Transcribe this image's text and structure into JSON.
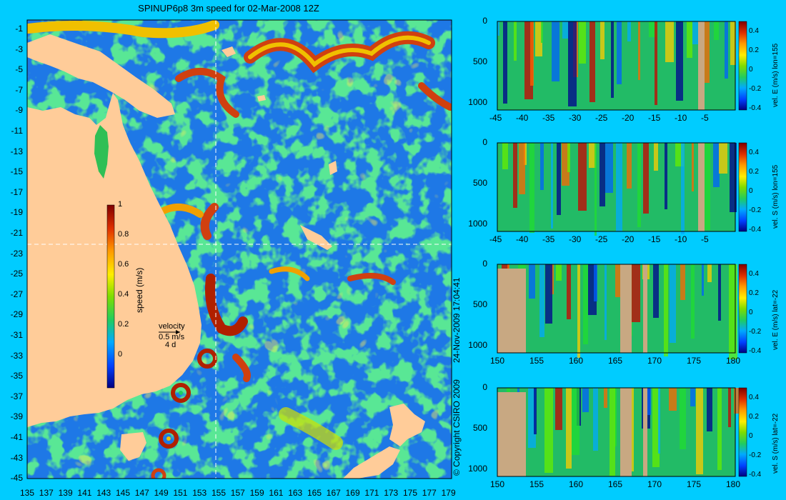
{
  "map": {
    "title": "SPINUP6p8 3m speed for 02-Mar-2008 12Z",
    "lat_labels": [
      "-1",
      "-3",
      "-5",
      "-7",
      "-9",
      "-11",
      "-13",
      "-15",
      "-17",
      "-19",
      "-21",
      "-23",
      "-25",
      "-27",
      "-29",
      "-31",
      "-33",
      "-35",
      "-37",
      "-39",
      "-41",
      "-43",
      "-45"
    ],
    "lon_labels": [
      "135",
      "137",
      "139",
      "141",
      "143",
      "145",
      "147",
      "149",
      "151",
      "153",
      "155",
      "157",
      "159",
      "161",
      "163",
      "165",
      "167",
      "169",
      "171",
      "173",
      "175",
      "177",
      "179"
    ],
    "colorbar": {
      "label": "speed (m/s)",
      "ticks": [
        "1",
        "0.8",
        "0.6",
        "0.4",
        "0.2",
        "0"
      ]
    },
    "velocity_key": {
      "title": "velocity",
      "value": "0.5 m/s",
      "duration": "4 d"
    },
    "transect_lon": 155,
    "transect_lat": -22,
    "colors": {
      "land": "#ffcc99",
      "background": "#00ccff",
      "ocean_low": "#1e78e6",
      "ocean_mid": "#2fbf55",
      "ocean_high": "#c83c10"
    }
  },
  "credits": {
    "date_stamp": "24-Nov-2009 17:04:41",
    "copyright": "© Copyright CSIRO 2009"
  },
  "panels": [
    {
      "label": "vel. E (m/s) lon=155",
      "x_ticks": [
        "-45",
        "-40",
        "-35",
        "-30",
        "-25",
        "-20",
        "-15",
        "-10",
        "-5"
      ],
      "y_ticks": [
        "0",
        "500",
        "1000"
      ],
      "cbar_ticks": [
        "0.4",
        "0.2",
        "0",
        "-0.2",
        "-0.4"
      ]
    },
    {
      "label": "vel. S (m/s) lon=155",
      "x_ticks": [
        "-45",
        "-40",
        "-35",
        "-30",
        "-25",
        "-20",
        "-15",
        "-10",
        "-5"
      ],
      "y_ticks": [
        "0",
        "500",
        "1000"
      ],
      "cbar_ticks": [
        "0.4",
        "0.2",
        "0",
        "-0.2",
        "-0.4"
      ]
    },
    {
      "label": "vel. E (m/s) lat=-22",
      "x_ticks": [
        "150",
        "155",
        "160",
        "165",
        "170",
        "175",
        "180"
      ],
      "y_ticks": [
        "0",
        "500",
        "1000"
      ],
      "cbar_ticks": [
        "0.4",
        "0.2",
        "0",
        "-0.2",
        "-0.4"
      ]
    },
    {
      "label": "vel. S (m/s) lat=-22",
      "x_ticks": [
        "150",
        "155",
        "160",
        "165",
        "170",
        "175",
        "180"
      ],
      "y_ticks": [
        "0",
        "500",
        "1000"
      ],
      "cbar_ticks": [
        "0.4",
        "0.2",
        "0",
        "-0.2",
        "-0.4"
      ]
    }
  ]
}
